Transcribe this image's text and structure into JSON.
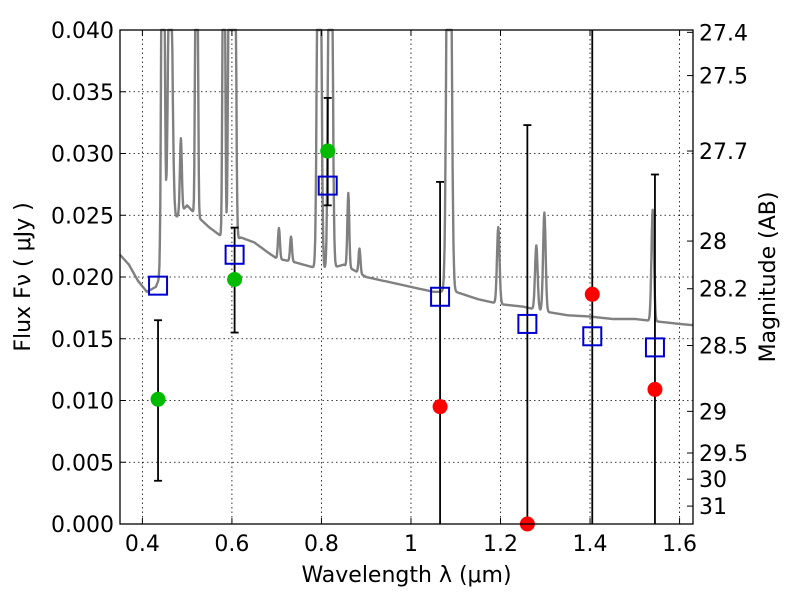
{
  "chart_data": {
    "type": "scatter",
    "xlabel": "Wavelength  λ (μm)",
    "ylabel_left": "Flux  Fν  ( μJy )",
    "ylabel_right": "Magnitude (AB)",
    "xlim": [
      0.35,
      1.63
    ],
    "ylim": [
      0.0,
      0.04
    ],
    "grid": true,
    "x_ticks": [
      0.4,
      0.6,
      0.8,
      1.0,
      1.2,
      1.4,
      1.6
    ],
    "x_tick_labels": [
      "0.4",
      "0.6",
      "0.8",
      "1",
      "1.2",
      "1.4",
      "1.6"
    ],
    "y_ticks": [
      0.0,
      0.005,
      0.01,
      0.015,
      0.02,
      0.025,
      0.03,
      0.035,
      0.04
    ],
    "y_tick_labels": [
      "0.000",
      "0.005",
      "0.010",
      "0.015",
      "0.020",
      "0.025",
      "0.030",
      "0.035",
      "0.040"
    ],
    "right_ticks": [
      {
        "label": "27.4",
        "flux": 0.03981
      },
      {
        "label": "27.5",
        "flux": 0.03631
      },
      {
        "label": "27.7",
        "flux": 0.0302
      },
      {
        "label": "28",
        "flux": 0.02291
      },
      {
        "label": "28.2",
        "flux": 0.01905
      },
      {
        "label": "28.5",
        "flux": 0.01445
      },
      {
        "label": "29",
        "flux": 0.00912
      },
      {
        "label": "29.5",
        "flux": 0.00575
      },
      {
        "label": "30",
        "flux": 0.00363
      },
      {
        "label": "31",
        "flux": 0.00145
      }
    ],
    "series": [
      {
        "kind": "observed-detections",
        "color": "#00bb00",
        "points": [
          {
            "x": 0.435,
            "y": 0.0101,
            "err_lo": 0.0035,
            "err_hi": 0.0165
          },
          {
            "x": 0.606,
            "y": 0.0198,
            "err_lo": 0.0155,
            "err_hi": 0.024
          },
          {
            "x": 0.814,
            "y": 0.0302,
            "err_lo": 0.0258,
            "err_hi": 0.0345
          }
        ]
      },
      {
        "kind": "observed-upper",
        "color": "#ff0000",
        "points": [
          {
            "x": 1.065,
            "y": 0.0095,
            "err_lo": 0.0,
            "err_hi": 0.0277
          },
          {
            "x": 1.26,
            "y": 0.0,
            "err_lo": 0.0,
            "err_hi": 0.0323
          },
          {
            "x": 1.405,
            "y": 0.0186,
            "err_lo": 0.0,
            "err_hi": 0.04
          },
          {
            "x": 1.545,
            "y": 0.0109,
            "err_lo": 0.0,
            "err_hi": 0.0283
          }
        ]
      },
      {
        "kind": "model-synthetic",
        "color": "#0000cc",
        "points": [
          {
            "x": 0.435,
            "y": 0.0193
          },
          {
            "x": 0.606,
            "y": 0.0218
          },
          {
            "x": 0.814,
            "y": 0.0274
          },
          {
            "x": 1.065,
            "y": 0.0184
          },
          {
            "x": 1.26,
            "y": 0.0162
          },
          {
            "x": 1.405,
            "y": 0.0152
          },
          {
            "x": 1.545,
            "y": 0.0143
          }
        ]
      }
    ],
    "spectrum": {
      "color": "#808080",
      "continuum": [
        [
          0.35,
          0.0218
        ],
        [
          0.37,
          0.021
        ],
        [
          0.39,
          0.0197
        ],
        [
          0.41,
          0.0188
        ],
        [
          0.43,
          0.0192
        ],
        [
          0.445,
          0.0205
        ],
        [
          0.46,
          0.024
        ],
        [
          0.48,
          0.025
        ],
        [
          0.5,
          0.0258
        ],
        [
          0.52,
          0.025
        ],
        [
          0.55,
          0.024
        ],
        [
          0.58,
          0.0232
        ],
        [
          0.6,
          0.0228
        ],
        [
          0.62,
          0.0232
        ],
        [
          0.65,
          0.0228
        ],
        [
          0.68,
          0.022
        ],
        [
          0.7,
          0.0215
        ],
        [
          0.74,
          0.0212
        ],
        [
          0.78,
          0.0208
        ],
        [
          0.8,
          0.0205
        ],
        [
          0.85,
          0.021
        ],
        [
          0.9,
          0.02
        ],
        [
          0.95,
          0.0196
        ],
        [
          1.0,
          0.0192
        ],
        [
          1.05,
          0.0188
        ],
        [
          1.1,
          0.0188
        ],
        [
          1.15,
          0.0182
        ],
        [
          1.2,
          0.0178
        ],
        [
          1.25,
          0.0176
        ],
        [
          1.3,
          0.0172
        ],
        [
          1.35,
          0.0169
        ],
        [
          1.4,
          0.0168
        ],
        [
          1.45,
          0.0166
        ],
        [
          1.5,
          0.0166
        ],
        [
          1.55,
          0.0164
        ],
        [
          1.6,
          0.0162
        ],
        [
          1.63,
          0.0161
        ]
      ],
      "lines": [
        [
          0.446,
          0.004,
          0.055
        ],
        [
          0.462,
          0.006,
          0.0278
        ],
        [
          0.486,
          0.003,
          0.006
        ],
        [
          0.521,
          0.003,
          0.06
        ],
        [
          0.582,
          0.003,
          0.06
        ],
        [
          0.596,
          0.004,
          0.06
        ],
        [
          0.605,
          0.004,
          0.06
        ],
        [
          0.705,
          0.003,
          0.0025
        ],
        [
          0.732,
          0.003,
          0.002
        ],
        [
          0.795,
          0.005,
          0.06
        ],
        [
          0.82,
          0.005,
          0.06
        ],
        [
          0.86,
          0.003,
          0.006
        ],
        [
          0.885,
          0.003,
          0.002
        ],
        [
          1.085,
          0.006,
          0.06
        ],
        [
          1.195,
          0.004,
          0.0062
        ],
        [
          1.28,
          0.004,
          0.0052
        ],
        [
          1.298,
          0.004,
          0.008
        ],
        [
          1.54,
          0.004,
          0.009
        ]
      ]
    }
  }
}
